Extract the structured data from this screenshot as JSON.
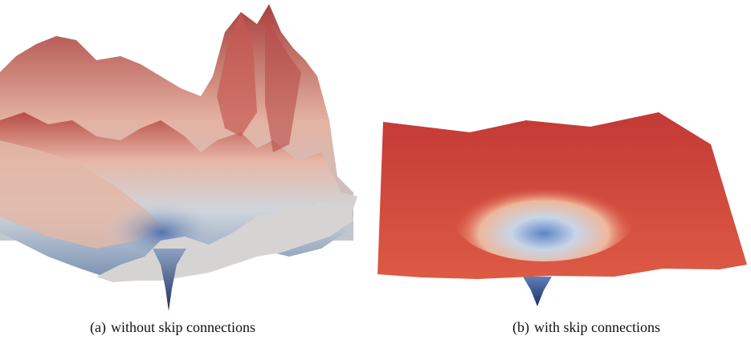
{
  "figures": [
    {
      "tag": "(a)",
      "caption": "without skip connections"
    },
    {
      "tag": "(b)",
      "caption": "with skip connections"
    }
  ],
  "colors": {
    "high": "#c9474a",
    "mid": "#f0c9b4",
    "low": "#3a5a9c",
    "gray": "#c8ccd2"
  }
}
